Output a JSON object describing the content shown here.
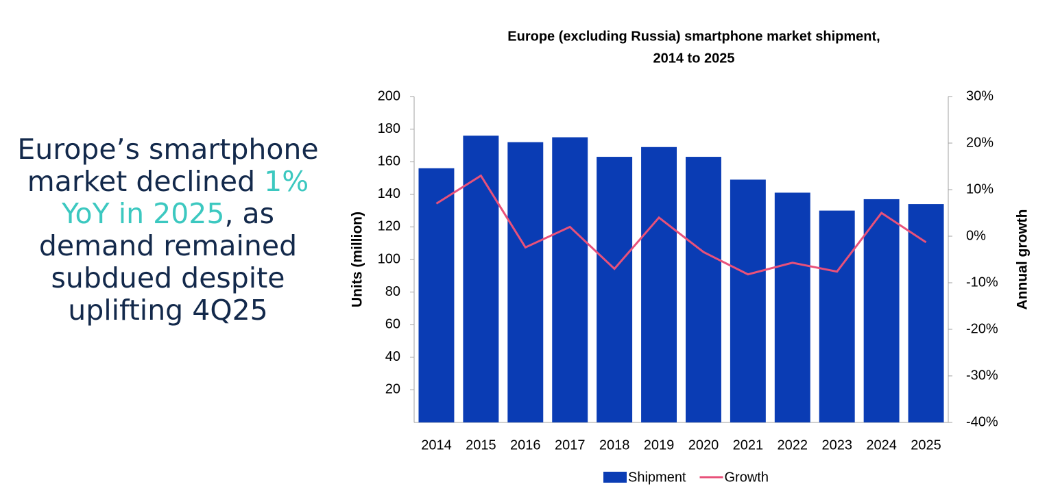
{
  "headline": {
    "parts": [
      "Europe’s smartphone market declined ",
      "1% YoY in 2025",
      ", as demand remained subdued despite uplifting 4Q25"
    ],
    "color": "#13294b",
    "highlight_color": "#3cc8c0"
  },
  "chart_data": {
    "type": "bar-line",
    "title": [
      "Europe (excluding Russia) smartphone market shipment,",
      "2014 to 2025"
    ],
    "y_label": "Units (million)",
    "y2_label": "Annual growth",
    "categories": [
      "2014",
      "2015",
      "2016",
      "2017",
      "2018",
      "2019",
      "2020",
      "2021",
      "2022",
      "2023",
      "2024",
      "2025"
    ],
    "series": [
      {
        "name": "Shipment",
        "type": "bar",
        "color": "#0a3cb4",
        "values": [
          156,
          176,
          172,
          175,
          163,
          169,
          163,
          149,
          141,
          130,
          137,
          134
        ]
      },
      {
        "name": "Growth",
        "type": "line",
        "axis": "y2",
        "color": "#e8517a",
        "values": [
          7,
          13,
          -2.4,
          2,
          -7,
          4,
          -3.4,
          -8.2,
          -5.7,
          -7.6,
          5,
          -1.3
        ]
      }
    ],
    "ylim": [
      0,
      200
    ],
    "yticks": [
      20,
      40,
      60,
      80,
      100,
      120,
      140,
      160,
      180,
      200
    ],
    "y2lim": [
      -40,
      30
    ],
    "y2ticks": [
      {
        "value": 30,
        "label": "30%"
      },
      {
        "value": 20,
        "label": "20%"
      },
      {
        "value": 10,
        "label": "10%"
      },
      {
        "value": 0,
        "label": "0%"
      },
      {
        "value": -10,
        "label": "-10%"
      },
      {
        "value": -20,
        "label": "-20%"
      },
      {
        "value": -30,
        "label": "-30%"
      },
      {
        "value": -40,
        "label": "-40%"
      }
    ],
    "grid": false,
    "legend": "bottom"
  }
}
